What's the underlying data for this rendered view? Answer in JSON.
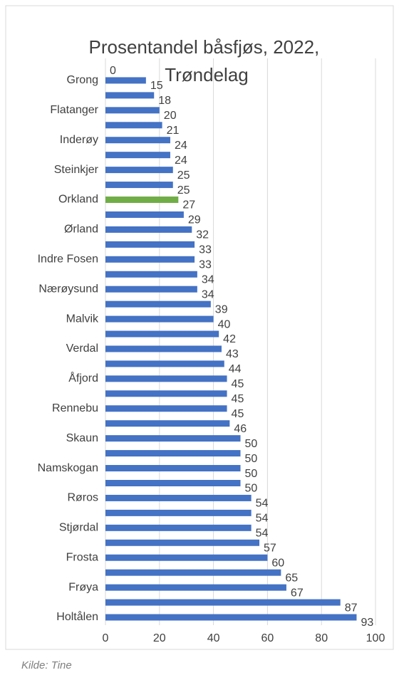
{
  "chart_data": {
    "type": "barh",
    "title": "Prosentandel båsfjøs, 2022, Trøndelag",
    "source": "Kilde: Tine",
    "categories": [
      null,
      "Grong",
      null,
      "Flatanger",
      null,
      "Inderøy",
      null,
      "Steinkjer",
      null,
      "Orkland",
      null,
      "Ørland",
      null,
      "Indre Fosen",
      null,
      "Nærøysund",
      null,
      "Malvik",
      null,
      "Verdal",
      null,
      "Åfjord",
      null,
      "Rennebu",
      null,
      "Skaun",
      null,
      "Namskogan",
      null,
      "Røros",
      null,
      "Stjørdal",
      null,
      "Frosta",
      null,
      "Frøya",
      null,
      "Holtålen"
    ],
    "values": [
      0,
      15,
      18,
      20,
      21,
      24,
      24,
      25,
      25,
      27,
      29,
      32,
      33,
      33,
      34,
      34,
      39,
      40,
      42,
      43,
      44,
      45,
      45,
      45,
      46,
      50,
      50,
      50,
      50,
      54,
      54,
      54,
      57,
      60,
      65,
      67,
      87,
      93
    ],
    "color": "#4472c4",
    "highlight": {
      "index": 9,
      "color": "#70ad47"
    },
    "xlim": [
      0,
      100
    ],
    "xticks": [
      0,
      20,
      40,
      60,
      80,
      100
    ],
    "grid": true
  }
}
